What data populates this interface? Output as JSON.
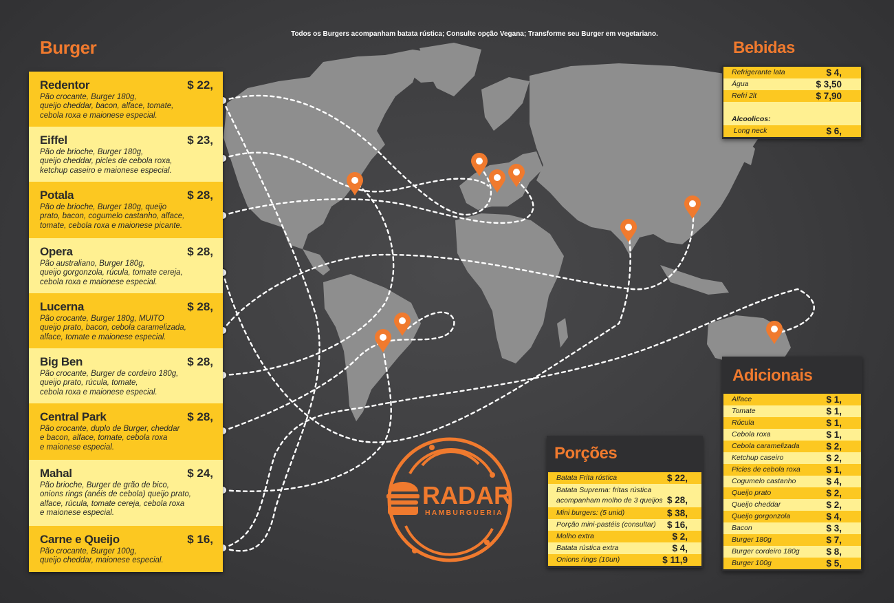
{
  "headings": {
    "burger": "Burger",
    "bebidas": "Bebidas",
    "adicionais": "Adicionais",
    "porcoes": "Porções"
  },
  "note": "Todos os Burgers acompanham batata rústica;  Consulte opção Vegana;  Transforme seu Burger em vegetariano.",
  "burgers": [
    {
      "name": "Redentor",
      "price": "$ 22,",
      "desc": "Pão crocante, Burger 180g,\nqueijo cheddar, bacon, alface, tomate,\ncebola roxa e maionese especial."
    },
    {
      "name": "Eiffel",
      "price": "$ 23,",
      "desc": "Pão de brioche, Burger 180g,\nqueijo cheddar, picles de cebola roxa,\nketchup caseiro e maionese especial."
    },
    {
      "name": "Potala",
      "price": "$ 28,",
      "desc": "Pão de brioche, Burger 180g, queijo\nprato, bacon, cogumelo castanho, alface,\ntomate, cebola roxa e maionese picante."
    },
    {
      "name": "Opera",
      "price": "$ 28,",
      "desc": "Pão australiano, Burger 180g,\nqueijo gorgonzola, rúcula, tomate cereja,\ncebola roxa e maionese especial."
    },
    {
      "name": "Lucerna",
      "price": "$ 28,",
      "desc": "Pão crocante, Burger 180g, MUITO\nqueijo prato, bacon, cebola caramelizada,\nalface, tomate e maionese especial."
    },
    {
      "name": "Big Ben",
      "price": "$ 28,",
      "desc": "Pão crocante, Burger de cordeiro 180g,\nqueijo prato, rúcula, tomate,\ncebola roxa e maionese especial."
    },
    {
      "name": "Central Park",
      "price": "$ 28,",
      "desc": "Pão crocante, duplo de Burger, cheddar\ne bacon, alface, tomate, cebola roxa\ne maionese especial."
    },
    {
      "name": "Mahal",
      "price": "$ 24,",
      "desc": "Pão brioche, Burger de grão de bico,\nonions rings (anéis de cebola) queijo prato,\nalface, rúcula, tomate cereja, cebola roxa\ne maionese especial."
    },
    {
      "name": "Carne e Queijo",
      "price": "$ 16,",
      "desc": "Pão crocante, Burger 100g,\nqueijo cheddar, maionese especial."
    }
  ],
  "bebidas": [
    {
      "label": "Refrigerante lata",
      "price": "$ 4,"
    },
    {
      "label": "Água",
      "price": "$ 3,50"
    },
    {
      "label": "Refri 2lt",
      "price": "$ 7,90"
    },
    {
      "label": "",
      "price": ""
    },
    {
      "label": "Alcoolicos:",
      "price": ""
    },
    {
      "label": " Long neck",
      "price": "$ 6,"
    }
  ],
  "adicionais": [
    {
      "label": "Alface",
      "price": "$ 1,"
    },
    {
      "label": "Tomate",
      "price": "$ 1,"
    },
    {
      "label": "Rúcula",
      "price": "$ 1,"
    },
    {
      "label": "Cebola roxa",
      "price": "$ 1,"
    },
    {
      "label": "Cebola caramelizada",
      "price": "$ 2,"
    },
    {
      "label": "Ketchup caseiro",
      "price": "$ 2,"
    },
    {
      "label": "Picles de cebola roxa",
      "price": "$ 1,"
    },
    {
      "label": "Cogumelo castanho",
      "price": "$ 4,"
    },
    {
      "label": "Queijo prato",
      "price": "$ 2,"
    },
    {
      "label": "Queijo cheddar",
      "price": "$ 2,"
    },
    {
      "label": "Queijo gorgonzola",
      "price": "$ 4,"
    },
    {
      "label": "Bacon",
      "price": "$ 3,"
    },
    {
      "label": "Burger 180g",
      "price": "$ 7,"
    },
    {
      "label": "Burger cordeiro 180g",
      "price": "$ 8,"
    },
    {
      "label": "Burger 100g",
      "price": "$ 5,"
    }
  ],
  "porcoes": [
    {
      "label": "Batata Frita rústica",
      "price": "$ 22,"
    },
    {
      "label": "Batata Suprema: fritas rústica\nacompanham molho de 3 queijos",
      "price": "$ 28,"
    },
    {
      "label": "Mini burgers:  (5 unid)",
      "price": "$ 38,"
    },
    {
      "label": "Porção mini-pastéis (consultar)",
      "price": "$ 16,"
    },
    {
      "label": "Molho extra",
      "price": "$ 2,"
    },
    {
      "label": "Batata rústica extra",
      "price": "$ 4,"
    },
    {
      "label": "Onions rings (10un)",
      "price": "$ 11,9"
    }
  ],
  "logo": {
    "name": "RADAR",
    "sub": "HAMBURGUERIA"
  },
  "colors": {
    "accent": "#f07a2e",
    "yellow": "#fcc821",
    "light_yellow": "#fff091",
    "background": "#3c3c3e",
    "land": "#8e8e8e"
  }
}
